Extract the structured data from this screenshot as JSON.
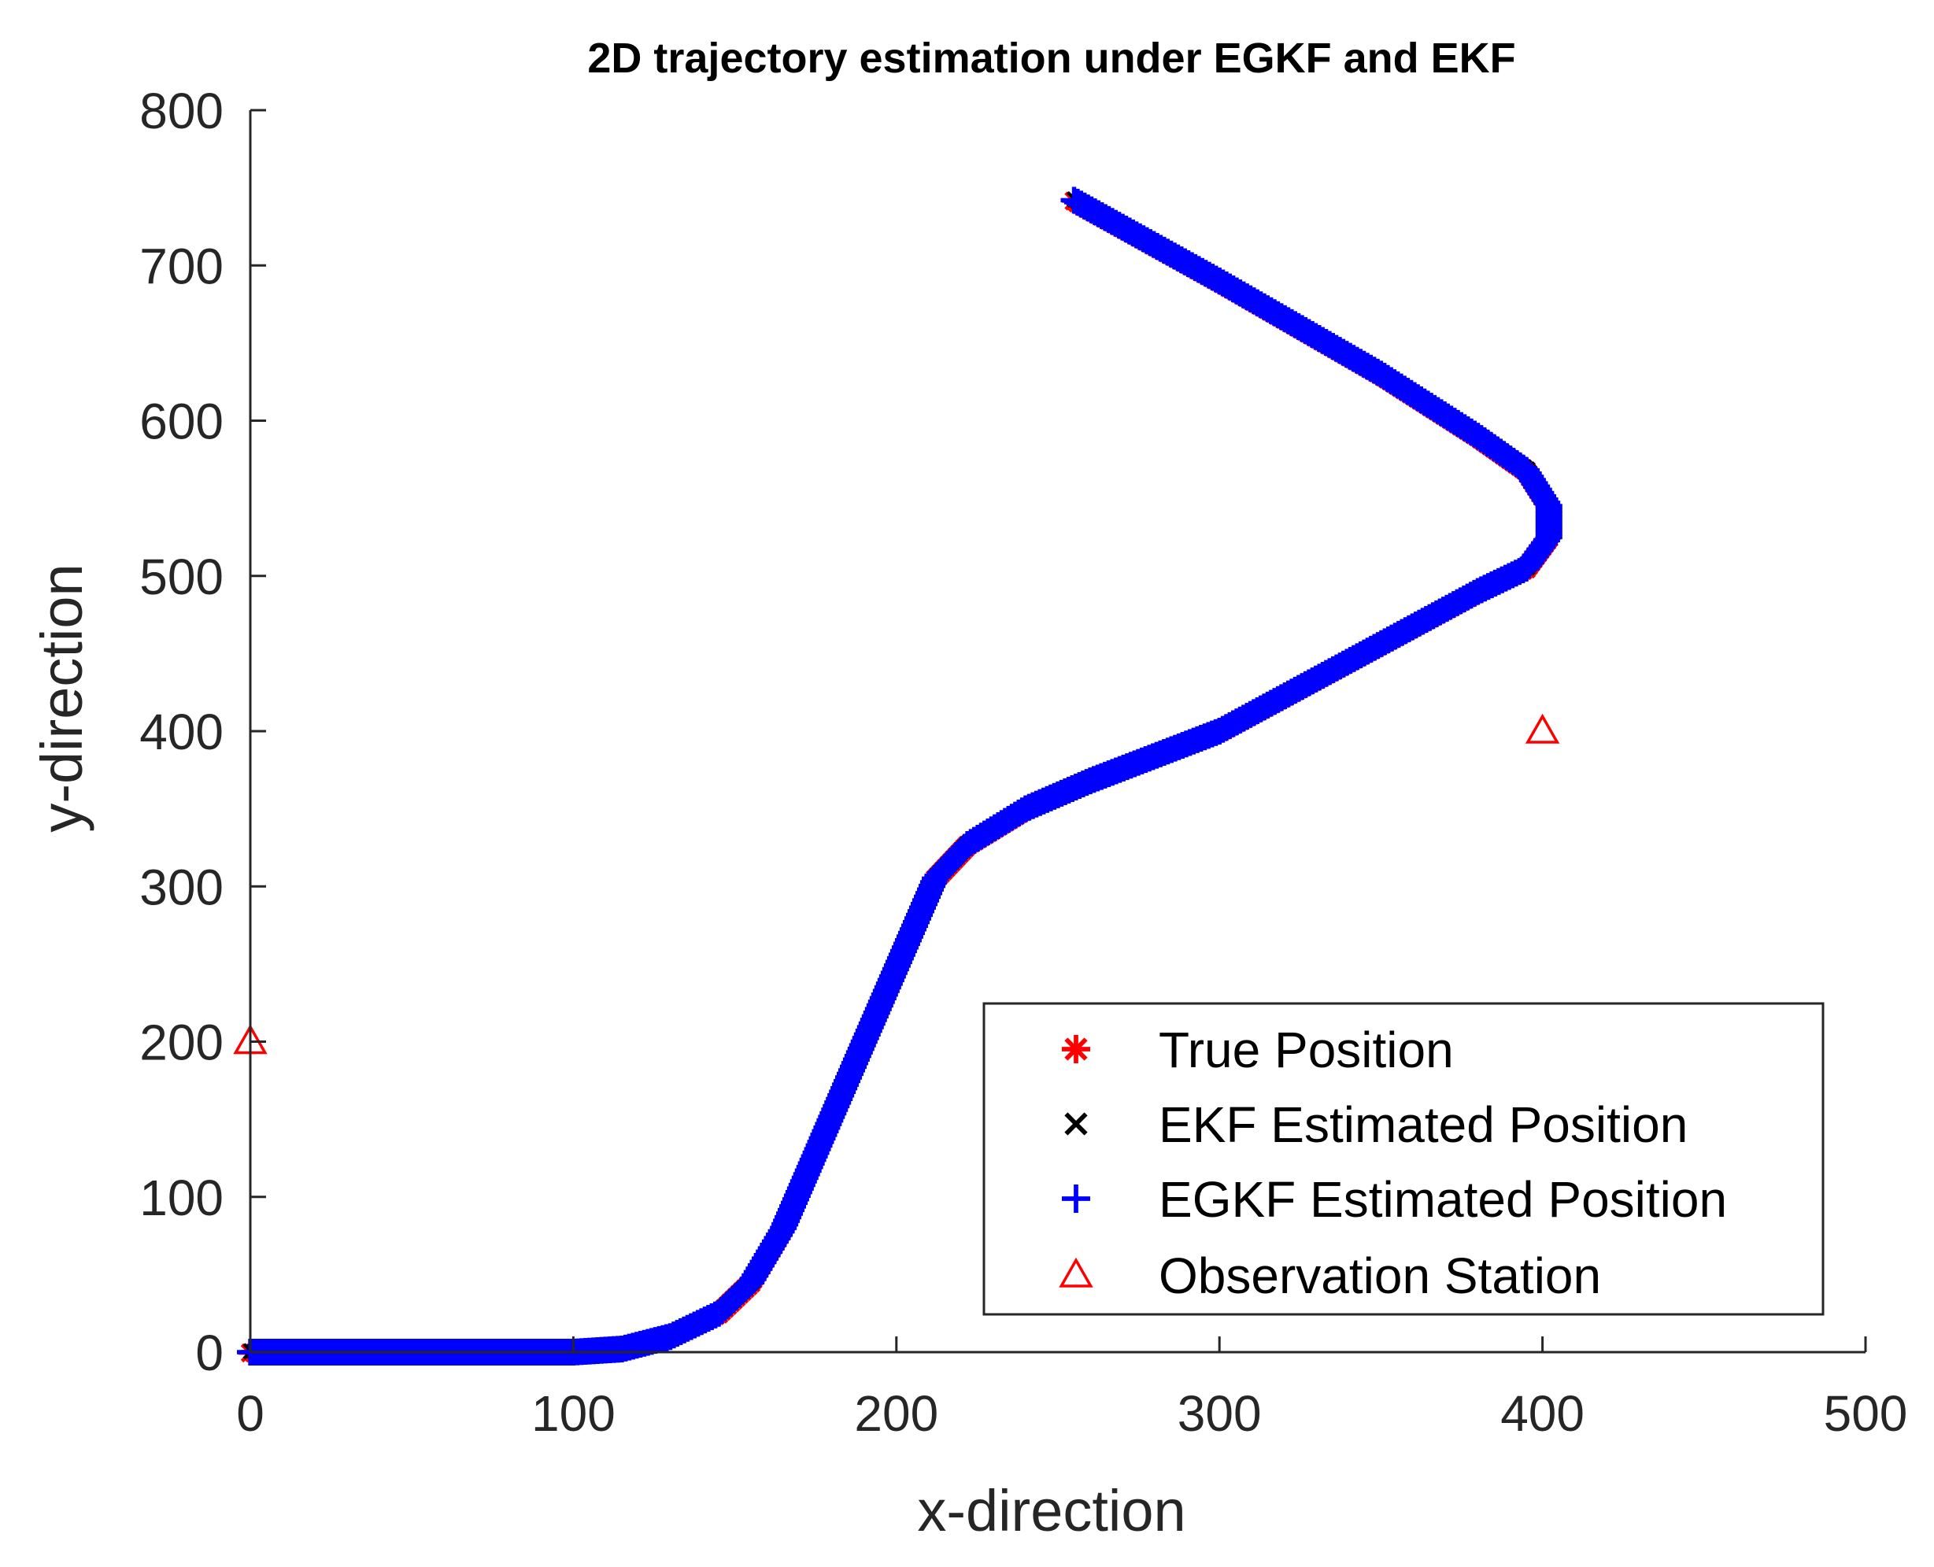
{
  "chart_data": {
    "type": "scatter",
    "title": "2D trajectory estimation under EGKF and EKF",
    "xlabel": "x-direction",
    "ylabel": "y-direction",
    "xlim": [
      0,
      500
    ],
    "ylim": [
      0,
      800
    ],
    "xticks": [
      "0",
      "100",
      "200",
      "300",
      "400",
      "500"
    ],
    "yticks": [
      "0",
      "100",
      "200",
      "300",
      "400",
      "500",
      "600",
      "700",
      "800"
    ],
    "grid": false,
    "legend_position": "bottom-right",
    "trajectory_waypoints": [
      {
        "x": 0,
        "y": 0
      },
      {
        "x": 100,
        "y": 0
      },
      {
        "x": 115,
        "y": 2
      },
      {
        "x": 130,
        "y": 10
      },
      {
        "x": 145,
        "y": 25
      },
      {
        "x": 155,
        "y": 45
      },
      {
        "x": 165,
        "y": 80
      },
      {
        "x": 190,
        "y": 200
      },
      {
        "x": 212,
        "y": 305
      },
      {
        "x": 222,
        "y": 327
      },
      {
        "x": 240,
        "y": 350
      },
      {
        "x": 260,
        "y": 368
      },
      {
        "x": 300,
        "y": 400
      },
      {
        "x": 380,
        "y": 490
      },
      {
        "x": 395,
        "y": 505
      },
      {
        "x": 402,
        "y": 525
      },
      {
        "x": 402,
        "y": 545
      },
      {
        "x": 395,
        "y": 568
      },
      {
        "x": 380,
        "y": 590
      },
      {
        "x": 350,
        "y": 630
      },
      {
        "x": 300,
        "y": 690
      },
      {
        "x": 255,
        "y": 742
      }
    ],
    "series": [
      {
        "name": "True Position",
        "marker": "asterisk",
        "color": "#ff0000",
        "values_source": "trajectory_waypoints"
      },
      {
        "name": "EKF Estimated Position",
        "marker": "x",
        "color": "#000000",
        "values_source": "trajectory_waypoints"
      },
      {
        "name": "EGKF Estimated Position",
        "marker": "plus",
        "color": "#0000ff",
        "values_source": "trajectory_waypoints"
      },
      {
        "name": "Observation Station",
        "marker": "triangle",
        "color": "#ff0000",
        "points": [
          {
            "x": 0,
            "y": 200
          },
          {
            "x": 400,
            "y": 400
          }
        ]
      }
    ]
  }
}
